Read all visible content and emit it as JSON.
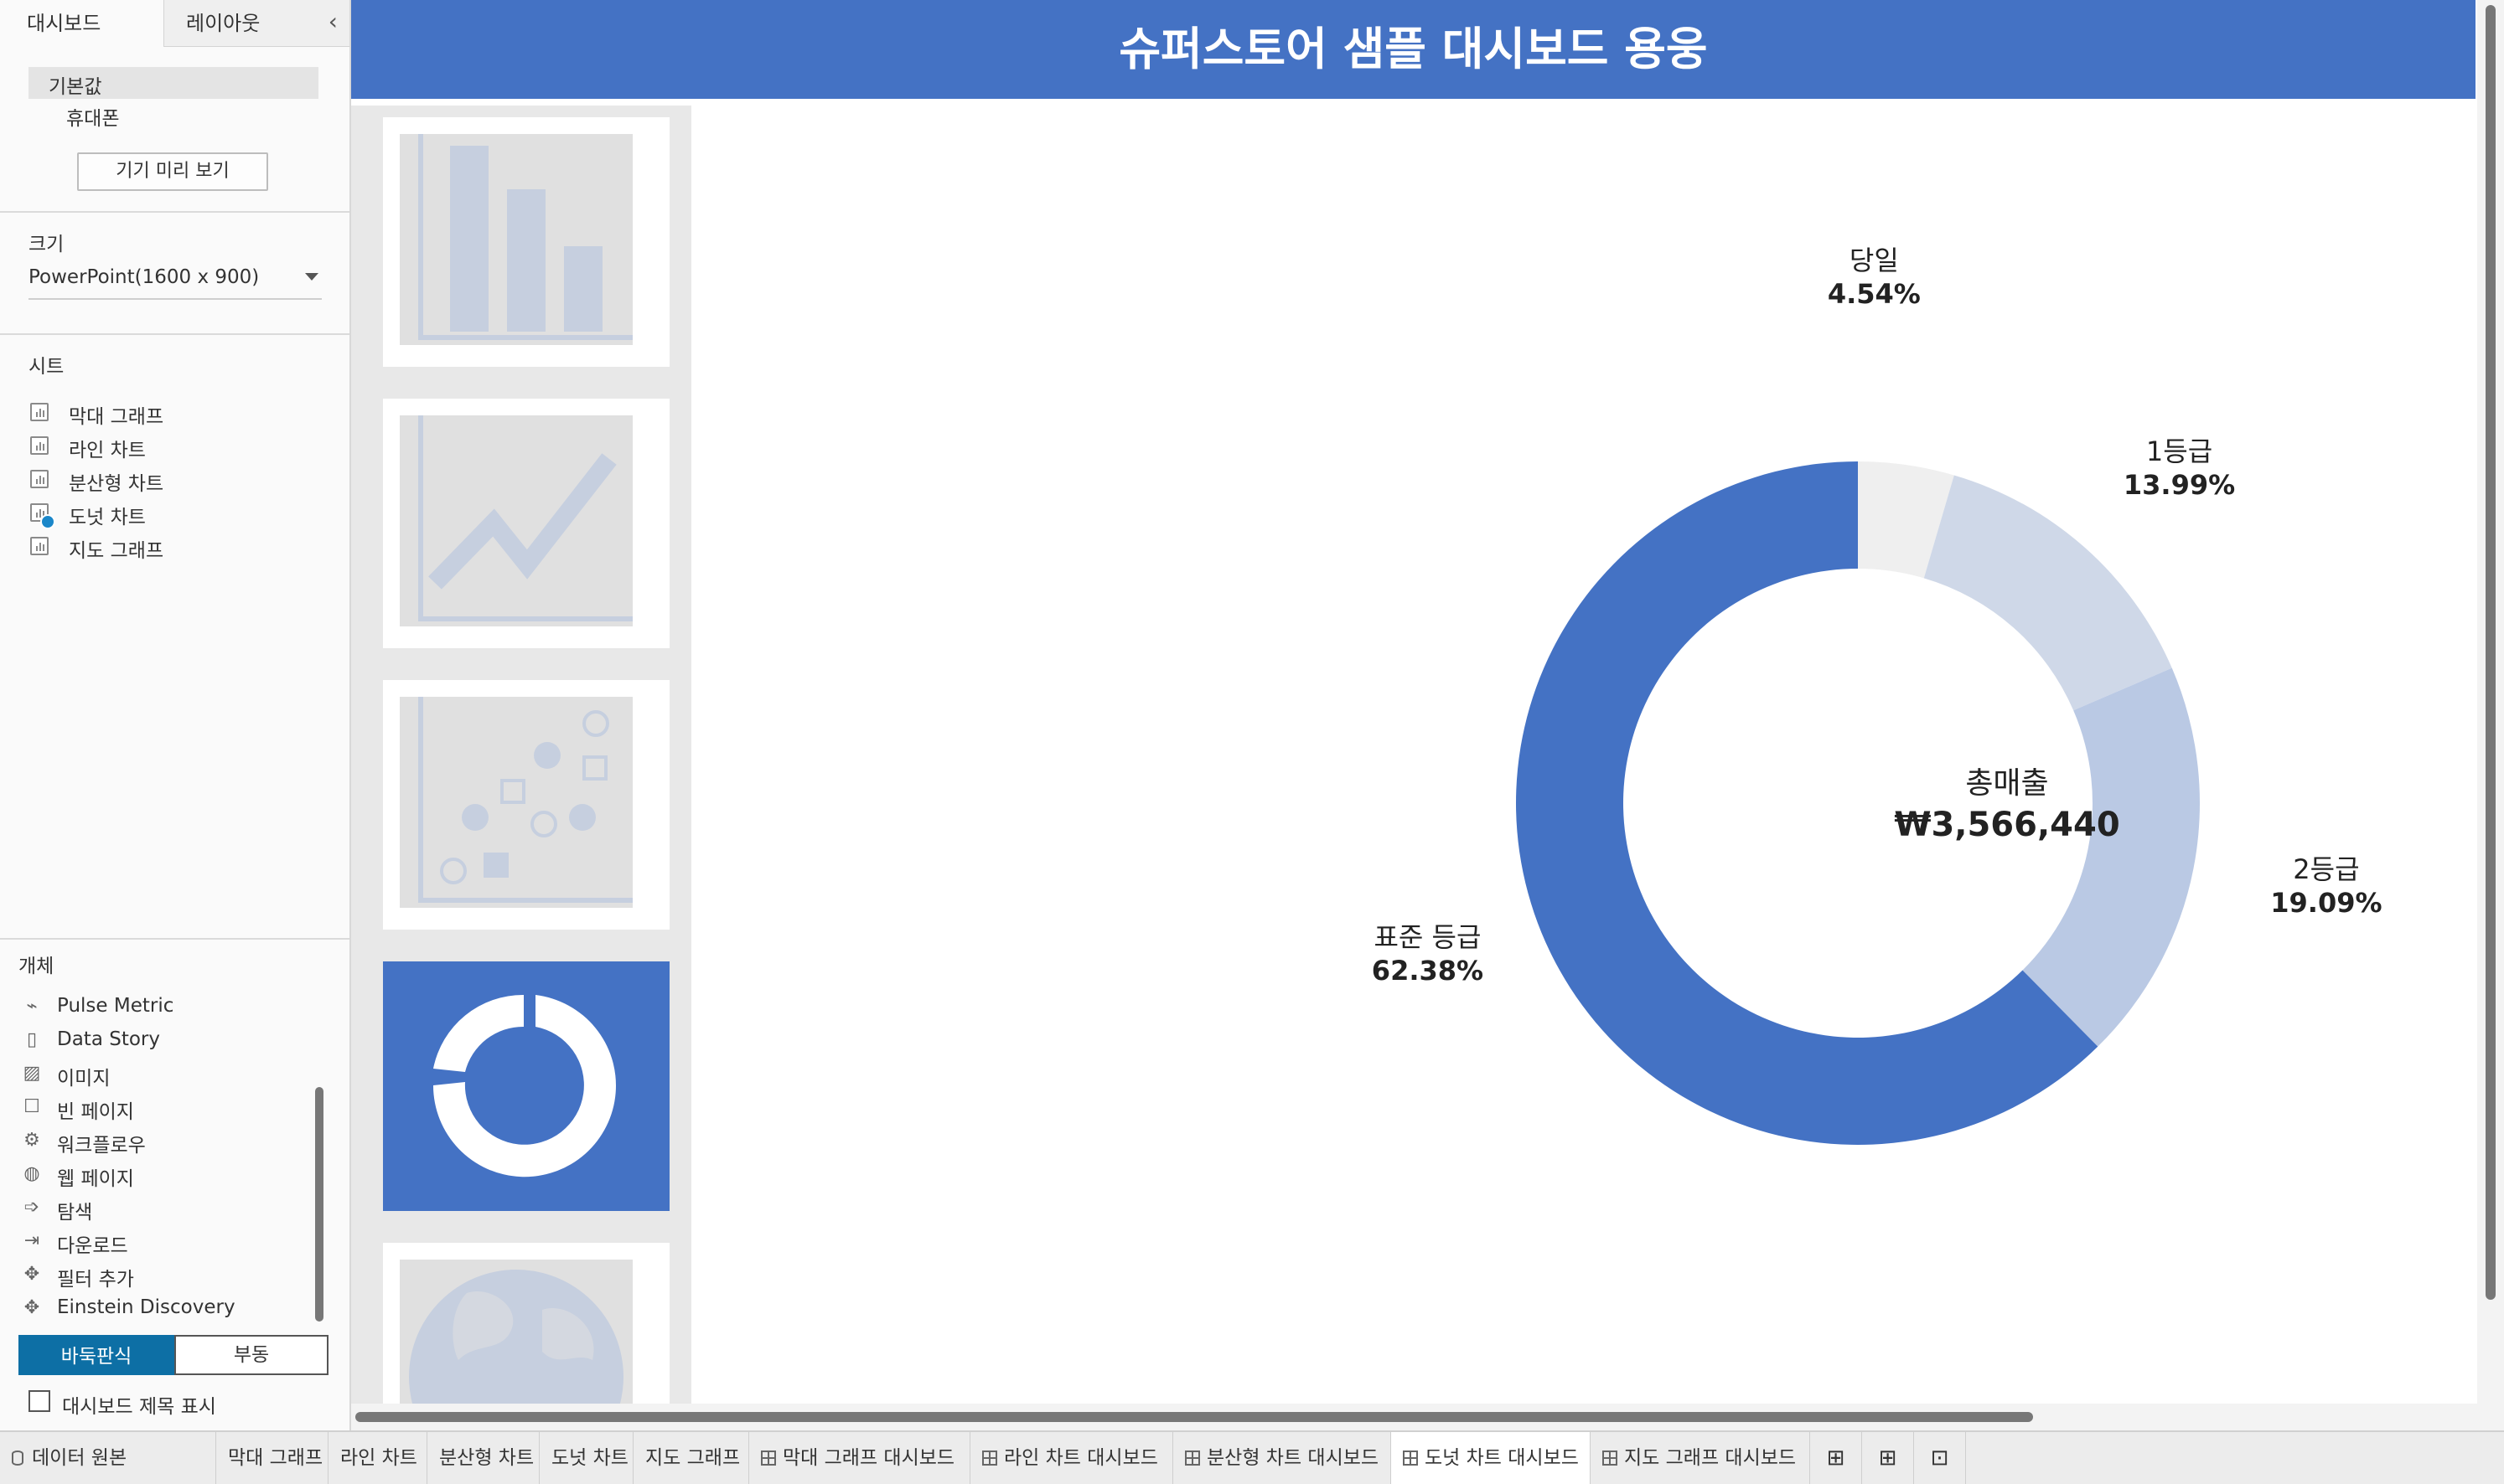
{
  "left_panel": {
    "tabs": [
      "대시보드",
      "레이아웃"
    ],
    "device": {
      "default": "기본값",
      "phone": "휴대폰",
      "preview_button": "기기 미리 보기"
    },
    "size": {
      "title": "크기",
      "value": "PowerPoint(1600 x 900)"
    },
    "sheets": {
      "title": "시트",
      "items": [
        "막대 그래프",
        "라인 차트",
        "분산형 차트",
        "도넛 차트",
        "지도 그래프"
      ]
    },
    "objects": {
      "title": "개체",
      "items": [
        {
          "label": "Pulse Metric",
          "icon": "pulse-metric-icon"
        },
        {
          "label": "Data Story",
          "icon": "book-icon"
        },
        {
          "label": "이미지",
          "icon": "image-icon"
        },
        {
          "label": "빈 페이지",
          "icon": "blank-icon"
        },
        {
          "label": "워크플로우",
          "icon": "workflow-icon"
        },
        {
          "label": "웹 페이지",
          "icon": "globe-icon"
        },
        {
          "label": "탐색",
          "icon": "navigation-icon"
        },
        {
          "label": "다운로드",
          "icon": "download-icon"
        },
        {
          "label": "필터 추가",
          "icon": "filter-extension-icon"
        },
        {
          "label": "Einstein Discovery",
          "icon": "einstein-icon"
        }
      ]
    },
    "layout_toggle": {
      "tiled": "바둑판식",
      "floating": "부동"
    },
    "show_title_label": "대시보드 제목 표시"
  },
  "dashboard": {
    "title": "슈퍼스토어 샘플 대시보드 용웅",
    "center_label": "총매출",
    "center_value": "₩3,566,440"
  },
  "chart_data": {
    "type": "pie",
    "subtype": "donut",
    "slices": [
      {
        "label": "당일",
        "value": 4.54,
        "pct_text": "4.54%",
        "color": "#efefef"
      },
      {
        "label": "1등급",
        "value": 13.99,
        "pct_text": "13.99%",
        "color": "#cfd8e8"
      },
      {
        "label": "2등급",
        "value": 19.09,
        "pct_text": "19.09%",
        "color": "#bac9e4"
      },
      {
        "label": "표준 등급",
        "value": 62.38,
        "pct_text": "62.38%",
        "color": "#4472c4"
      }
    ]
  },
  "bottom_tabs": {
    "data_source": "데이터 원본",
    "sheets": [
      "막대 그래프",
      "라인 차트",
      "분산형 차트",
      "도넛 차트",
      "지도 그래프"
    ],
    "dashboards": [
      "막대 그래프 대시보드",
      "라인 차트 대시보드",
      "분산형 차트 대시보드",
      "도넛 차트 대시보드",
      "지도 그래프 대시보드"
    ],
    "active": "도넛 차트 대시보드"
  },
  "colors": {
    "accent": "#4472c4",
    "toggle": "#0d6fa5"
  }
}
